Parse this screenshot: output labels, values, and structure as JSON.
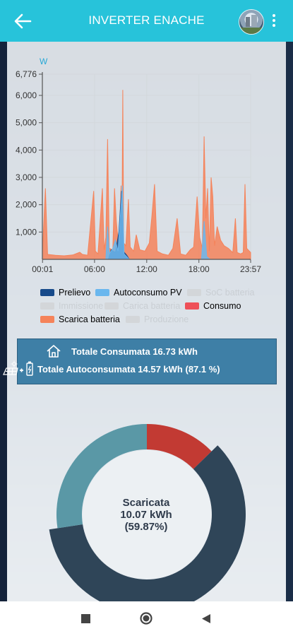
{
  "header": {
    "title": "INVERTER ENACHE",
    "back_icon": "arrow-left-icon",
    "menu_icon": "more-vert-icon"
  },
  "chart_data": {
    "type": "area",
    "ylabel": "W",
    "ylim": [
      0,
      6776
    ],
    "yticks": [
      "6,776",
      "6,000",
      "5,000",
      "4,000",
      "3,000",
      "2,000",
      "1,000"
    ],
    "ytick_values": [
      6776,
      6000,
      5000,
      4000,
      3000,
      2000,
      1000
    ],
    "xlabels": [
      "00:01",
      "06:00",
      "12:00",
      "18:00",
      "23:57"
    ],
    "xtick_hours": [
      0.02,
      6,
      12,
      18,
      23.95
    ],
    "series": [
      {
        "name": "Scarica batteria",
        "color": "#f5835a",
        "points": [
          [
            0.0,
            200
          ],
          [
            0.35,
            2600
          ],
          [
            0.6,
            180
          ],
          [
            1.5,
            150
          ],
          [
            2.5,
            130
          ],
          [
            3.5,
            160
          ],
          [
            4.3,
            260
          ],
          [
            4.6,
            180
          ],
          [
            5.2,
            150
          ],
          [
            5.9,
            2500
          ],
          [
            6.1,
            300
          ],
          [
            6.4,
            200
          ],
          [
            6.9,
            2600
          ],
          [
            7.1,
            350
          ],
          [
            7.3,
            800
          ],
          [
            7.5,
            4400
          ],
          [
            7.7,
            400
          ],
          [
            8.1,
            350
          ],
          [
            8.3,
            2600
          ],
          [
            8.5,
            1400
          ],
          [
            8.8,
            400
          ],
          [
            9.05,
            2700
          ],
          [
            9.15,
            900
          ],
          [
            9.25,
            6200
          ],
          [
            9.35,
            600
          ],
          [
            9.6,
            500
          ],
          [
            9.9,
            2200
          ],
          [
            10.1,
            450
          ],
          [
            10.5,
            300
          ],
          [
            10.8,
            900
          ],
          [
            11.2,
            350
          ],
          [
            11.8,
            300
          ],
          [
            12.3,
            600
          ],
          [
            12.6,
            1600
          ],
          [
            12.9,
            2750
          ],
          [
            13.2,
            300
          ],
          [
            13.8,
            200
          ],
          [
            14.5,
            150
          ],
          [
            15.0,
            400
          ],
          [
            15.5,
            1500
          ],
          [
            15.9,
            200
          ],
          [
            16.5,
            150
          ],
          [
            17.0,
            350
          ],
          [
            17.4,
            450
          ],
          [
            17.8,
            2300
          ],
          [
            18.1,
            800
          ],
          [
            18.4,
            400
          ],
          [
            18.6,
            4500
          ],
          [
            18.8,
            1500
          ],
          [
            19.0,
            2600
          ],
          [
            19.2,
            300
          ],
          [
            19.4,
            3000
          ],
          [
            19.6,
            2300
          ],
          [
            19.8,
            500
          ],
          [
            20.1,
            1200
          ],
          [
            20.5,
            700
          ],
          [
            20.9,
            500
          ],
          [
            21.4,
            400
          ],
          [
            21.9,
            250
          ],
          [
            22.2,
            1500
          ],
          [
            22.4,
            250
          ],
          [
            22.8,
            200
          ],
          [
            23.1,
            250
          ],
          [
            23.3,
            2750
          ],
          [
            23.5,
            400
          ],
          [
            23.95,
            250
          ]
        ]
      },
      {
        "name": "Prelievo",
        "color": "#174a8a",
        "points": [
          [
            0,
            0
          ],
          [
            7.6,
            0
          ],
          [
            7.9,
            350
          ],
          [
            8.4,
            250
          ],
          [
            8.8,
            1000
          ],
          [
            9.1,
            2500
          ],
          [
            9.3,
            300
          ],
          [
            9.7,
            150
          ],
          [
            10.0,
            0
          ],
          [
            23.95,
            0
          ]
        ]
      },
      {
        "name": "Autoconsumo PV",
        "color": "#6ab7ee",
        "points": [
          [
            0,
            0
          ],
          [
            7.3,
            0
          ],
          [
            7.5,
            1200
          ],
          [
            7.7,
            200
          ],
          [
            8.1,
            400
          ],
          [
            8.4,
            700
          ],
          [
            8.7,
            300
          ],
          [
            9.2,
            2700
          ],
          [
            9.4,
            200
          ],
          [
            10.0,
            0
          ],
          [
            18.3,
            0
          ],
          [
            18.6,
            1400
          ],
          [
            18.9,
            100
          ],
          [
            19.3,
            0
          ],
          [
            23.95,
            0
          ]
        ]
      }
    ]
  },
  "legend": [
    {
      "label": "Prelievo",
      "color": "#174a8a",
      "active": true
    },
    {
      "label": "Autoconsumo PV",
      "color": "#6ab7ee",
      "active": true
    },
    {
      "label": "SoC batteria",
      "color": "#d3d6d9",
      "active": false
    },
    {
      "label": "Immissione",
      "color": "#d3d6d9",
      "active": false
    },
    {
      "label": "Carica batteria",
      "color": "#d3d6d9",
      "active": false
    },
    {
      "label": "Consumo",
      "color": "#ee5058",
      "active": true
    },
    {
      "label": "Scarica batteria",
      "color": "#f5835a",
      "active": true
    },
    {
      "label": "Produzione",
      "color": "#d3d6d9",
      "active": false
    }
  ],
  "totals": {
    "consumed": "Totale Consumata 16.73 kWh",
    "self_consumed": "Totale Autoconsumata 14.57 kWh (87.1 %)"
  },
  "donut": {
    "label_line1": "Scaricata",
    "label_line2": "10.07 kWh",
    "label_line3": "(59.87%)",
    "segments": [
      {
        "name": "red",
        "value": 12.7,
        "color": "#c23a33"
      },
      {
        "name": "dark",
        "value": 59.87,
        "color": "#2f4558"
      },
      {
        "name": "teal",
        "value": 27.43,
        "color": "#5a98a6"
      }
    ]
  },
  "nav": {
    "recents_icon": "square-icon",
    "home_icon": "circle-icon",
    "back_icon": "triangle-back-icon"
  }
}
